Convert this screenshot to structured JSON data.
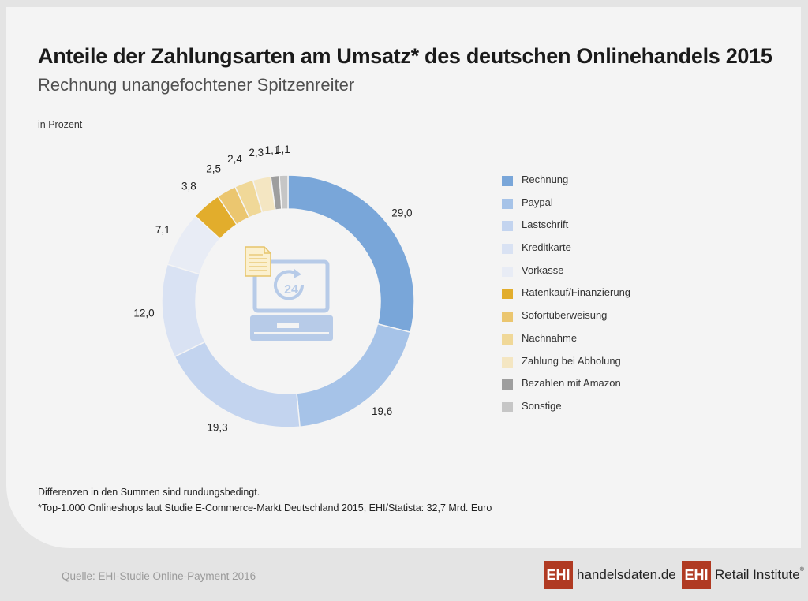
{
  "header": {
    "title": "Anteile der Zahlungsarten am Umsatz* des deutschen Onlinehandels 2015",
    "subtitle": "Rechnung unangefochtener Spitzenreiter",
    "unit": "in Prozent"
  },
  "chart_data": {
    "type": "pie",
    "variant": "donut",
    "title": "Anteile der Zahlungsarten am Umsatz* des deutschen Onlinehandels 2015",
    "subtitle": "Rechnung unangefochtener Spitzenreiter",
    "unit": "in Prozent",
    "legend_position": "right",
    "center_icon": "laptop-24h-invoice-icon",
    "slices": [
      {
        "label": "Rechnung",
        "value": 29.0,
        "value_label": "29,0",
        "color": "#79a6d9"
      },
      {
        "label": "Paypal",
        "value": 19.6,
        "value_label": "19,6",
        "color": "#a6c3e8"
      },
      {
        "label": "Lastschrift",
        "value": 19.3,
        "value_label": "19,3",
        "color": "#c3d4ef"
      },
      {
        "label": "Kreditkarte",
        "value": 12.0,
        "value_label": "12,0",
        "color": "#d9e2f3"
      },
      {
        "label": "Vorkasse",
        "value": 7.1,
        "value_label": "7,1",
        "color": "#e8ecf5"
      },
      {
        "label": "Ratenkauf/Finanzierung",
        "value": 3.8,
        "value_label": "3,8",
        "color": "#e2ad2c"
      },
      {
        "label": "Sofortüberweisung",
        "value": 2.5,
        "value_label": "2,5",
        "color": "#ebc66f"
      },
      {
        "label": "Nachnahme",
        "value": 2.4,
        "value_label": "2,4",
        "color": "#f0d898"
      },
      {
        "label": "Zahlung bei Abholung",
        "value": 2.3,
        "value_label": "2,3",
        "color": "#f4e6c2"
      },
      {
        "label": "Bezahlen mit Amazon",
        "value": 1.1,
        "value_label": "1,1",
        "color": "#9e9e9e"
      },
      {
        "label": "Sonstige",
        "value": 1.1,
        "value_label": "1,1",
        "color": "#c6c6c6"
      }
    ]
  },
  "notes": {
    "line1": "Differenzen in den Summen sind rundungsbedingt.",
    "line2": "*Top-1.000 Onlineshops laut Studie E-Commerce-Markt Deutschland 2015, EHI/Statista: 32,7 Mrd. Euro"
  },
  "footer": {
    "source": "Quelle: EHI-Studie Online-Payment 2016",
    "logo1_mark": "EHI",
    "logo1_text": "handelsdaten.de",
    "logo2_mark": "EHI",
    "logo2_text": "Retail Institute",
    "logo2_reg": "®",
    "brand_color": "#b03a22"
  }
}
